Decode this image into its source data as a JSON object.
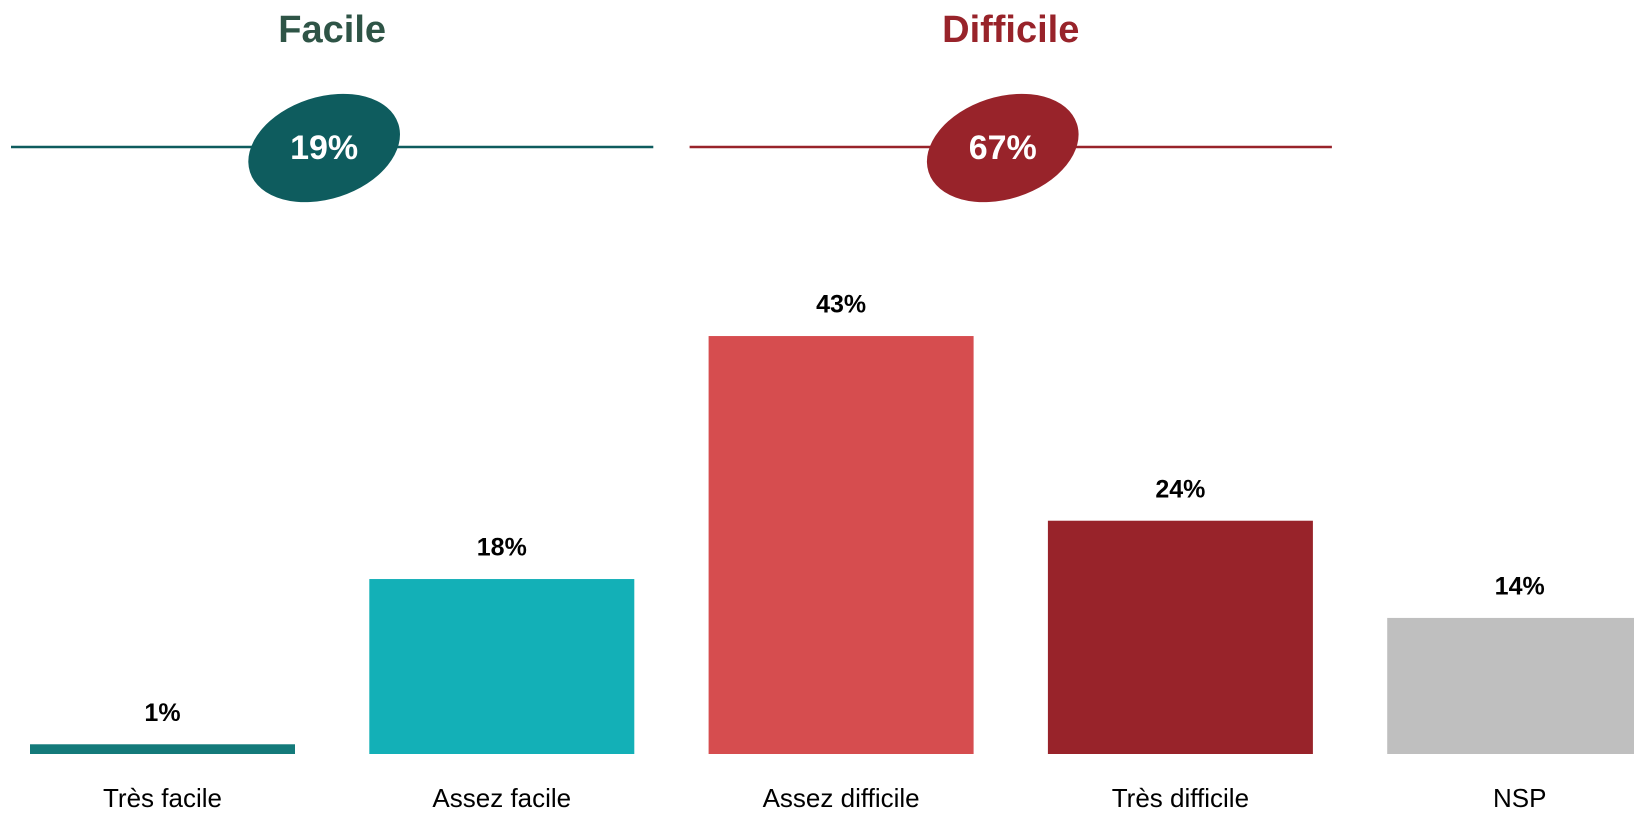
{
  "chart_data": {
    "type": "bar",
    "categories": [
      "Très facile",
      "Assez facile",
      "Assez difficile",
      "Très difficile",
      "NSP"
    ],
    "values": [
      1,
      18,
      43,
      24,
      14
    ],
    "value_labels": [
      "1%",
      "18%",
      "43%",
      "24%",
      "14%"
    ],
    "colors": [
      "#147a7a",
      "#13b0b7",
      "#d64d4f",
      "#98232a",
      "#bfbfbf"
    ],
    "groups": [
      {
        "title": "Facile",
        "total": 19,
        "total_label": "19%",
        "color": "#0e5c5e",
        "title_color": "#2e5446",
        "members": [
          0,
          1
        ]
      },
      {
        "title": "Difficile",
        "total": 67,
        "total_label": "67%",
        "color": "#98232a",
        "title_color": "#98232a",
        "members": [
          2,
          3
        ]
      }
    ]
  }
}
